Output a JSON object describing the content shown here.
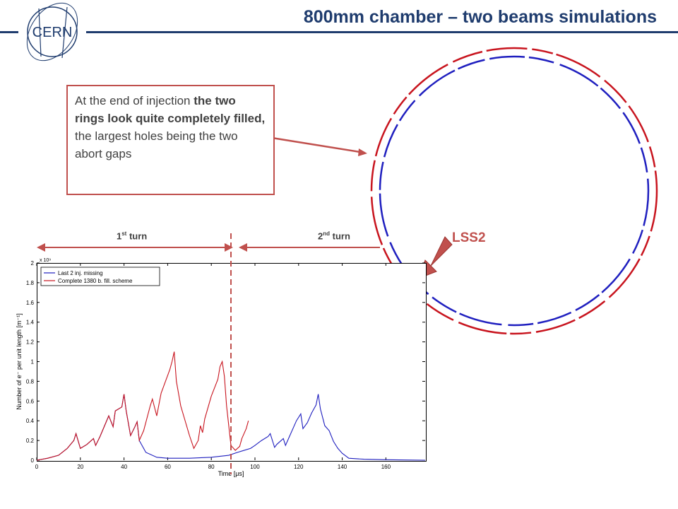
{
  "title": "800mm chamber – two beams simulations",
  "callout": {
    "part1": "At the end of injection ",
    "part2": "the two rings look quite completely filled,",
    "part3": " the largest holes being the two abort gaps"
  },
  "turns": {
    "first": {
      "prefix": "1",
      "sup": "st",
      "suffix": " turn"
    },
    "second": {
      "prefix": "2",
      "sup": "nd",
      "suffix": " turn"
    }
  },
  "ring_label": "LSS2",
  "colors": {
    "title": "#1f3c6e",
    "accent": "#c0504d",
    "series_blue": "#1f1fbf",
    "series_red": "#c8141e"
  },
  "chart_data": {
    "type": "line",
    "title": "",
    "xlabel": "Time [μs]",
    "ylabel": "Number of e⁻ per unit length [m⁻¹]",
    "y_multiplier": "x 10⁹",
    "xlim": [
      0,
      178
    ],
    "ylim": [
      0,
      2
    ],
    "xticks": [
      0,
      20,
      40,
      60,
      80,
      100,
      120,
      140,
      160
    ],
    "yticks": [
      0,
      0.2,
      0.4,
      0.6,
      0.8,
      1,
      1.2,
      1.4,
      1.6,
      1.8,
      2
    ],
    "legend_position": "top-left",
    "turn_boundary_x": 89,
    "series": [
      {
        "name": "Last 2 inj. missing",
        "x": [
          0,
          5,
          10,
          14,
          17,
          18,
          20,
          23,
          26,
          27,
          29,
          33,
          35,
          36,
          39,
          40,
          41,
          43,
          45,
          46,
          47,
          50,
          55,
          60,
          70,
          80,
          88,
          92,
          95,
          98,
          100,
          103,
          106,
          107,
          109,
          110,
          113,
          114,
          116,
          119,
          121,
          122,
          124,
          126,
          128,
          129,
          130,
          132,
          134,
          136,
          138,
          140,
          143,
          150,
          160,
          178
        ],
        "y": [
          0,
          0.02,
          0.05,
          0.12,
          0.2,
          0.27,
          0.12,
          0.16,
          0.22,
          0.15,
          0.24,
          0.45,
          0.34,
          0.5,
          0.54,
          0.67,
          0.5,
          0.25,
          0.34,
          0.39,
          0.2,
          0.08,
          0.03,
          0.02,
          0.02,
          0.03,
          0.05,
          0.08,
          0.1,
          0.12,
          0.15,
          0.2,
          0.24,
          0.27,
          0.13,
          0.16,
          0.22,
          0.15,
          0.25,
          0.4,
          0.47,
          0.32,
          0.38,
          0.48,
          0.56,
          0.67,
          0.52,
          0.35,
          0.3,
          0.19,
          0.12,
          0.07,
          0.02,
          0.01,
          0.005,
          0
        ]
      },
      {
        "name": "Complete 1380 b. fill. scheme",
        "x": [
          0,
          5,
          10,
          14,
          17,
          18,
          20,
          23,
          26,
          27,
          29,
          33,
          35,
          36,
          39,
          40,
          41,
          43,
          45,
          46,
          47,
          49,
          52,
          53,
          55,
          57,
          59,
          61,
          62,
          63,
          64,
          66,
          70,
          72,
          74,
          75,
          76,
          77,
          80,
          83,
          84,
          85,
          86,
          87,
          89,
          91,
          93,
          94,
          96,
          97
        ],
        "y": [
          0,
          0.02,
          0.05,
          0.12,
          0.2,
          0.27,
          0.12,
          0.16,
          0.22,
          0.15,
          0.24,
          0.45,
          0.34,
          0.5,
          0.54,
          0.67,
          0.5,
          0.25,
          0.34,
          0.39,
          0.2,
          0.3,
          0.55,
          0.62,
          0.45,
          0.68,
          0.8,
          0.92,
          1.0,
          1.1,
          0.8,
          0.55,
          0.25,
          0.12,
          0.2,
          0.35,
          0.28,
          0.42,
          0.65,
          0.82,
          0.95,
          1.0,
          0.85,
          0.55,
          0.15,
          0.1,
          0.14,
          0.22,
          0.32,
          0.4
        ]
      }
    ]
  }
}
